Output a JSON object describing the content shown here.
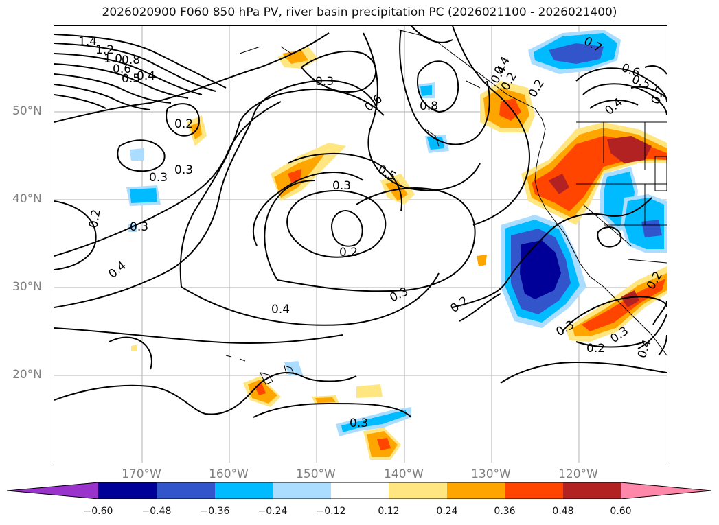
{
  "title": "2026020900 F060 850 hPa PV, river basin precipitation PC (2026021100 - 2026021400)",
  "lat_labels": [
    "50°N",
    "40°N",
    "30°N",
    "20°N"
  ],
  "lon_labels": [
    "170°W",
    "160°W",
    "150°W",
    "140°W",
    "130°W",
    "120°W"
  ],
  "colorbar": {
    "ticks": [
      "−0.60",
      "−0.48",
      "−0.36",
      "−0.24",
      "−0.12",
      "0.12",
      "0.24",
      "0.36",
      "0.48",
      "0.60"
    ],
    "colors": [
      "#9933cc",
      "#000099",
      "#3355cc",
      "#00bbff",
      "#aaddff",
      "#ffffff",
      "#ffe680",
      "#ffa500",
      "#ff4500",
      "#b22222",
      "#ff88aa"
    ]
  },
  "contour_labels": [
    "1.4",
    "1.2",
    "1.0",
    "0.8",
    "0.6",
    "0.5",
    "0.4",
    "0.3",
    "0.2",
    "0.3",
    "0.2",
    "0.3",
    "0.4",
    "0.2",
    "0.3",
    "0.4",
    "0.3",
    "0.2",
    "0.3",
    "0.6",
    "0.8",
    "0.5",
    "0.3",
    "0.2",
    "0.4",
    "0.3",
    "0.2",
    "0.3",
    "0.2",
    "0.4",
    "0.7",
    "0.6",
    "0.5",
    "0.7",
    "0.4",
    "0.2",
    "0.4"
  ]
}
